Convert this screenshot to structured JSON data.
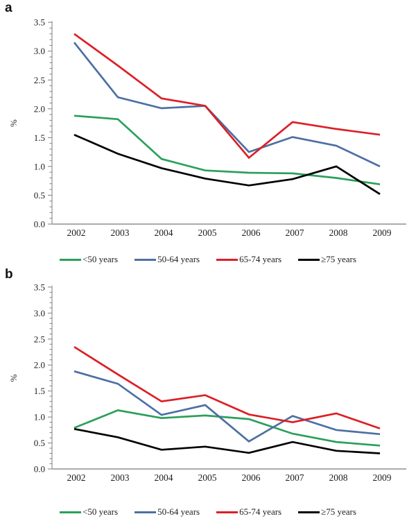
{
  "figure": {
    "background": "#ffffff"
  },
  "chart_data": [
    {
      "type": "line",
      "panel_label": "a",
      "title": "",
      "ylabel": "%",
      "xlabel": "",
      "x_categories": [
        "2002",
        "2003",
        "2004",
        "2005",
        "2006",
        "2007",
        "2008",
        "2009"
      ],
      "yticks": [
        "0.0",
        "0.5",
        "1.0",
        "1.5",
        "2.0",
        "2.5",
        "3.0",
        "3.5"
      ],
      "ylim": [
        0,
        3.5
      ],
      "grid": false,
      "legend_position": "bottom",
      "series": [
        {
          "name": "<50 years",
          "color": "#2ba05a",
          "values": [
            1.88,
            1.82,
            1.13,
            0.93,
            0.89,
            0.88,
            0.8,
            0.69
          ]
        },
        {
          "name": "50-64 years",
          "color": "#4d6fa3",
          "values": [
            3.15,
            2.2,
            2.01,
            2.05,
            1.25,
            1.51,
            1.36,
            1.0
          ]
        },
        {
          "name": "65-74 years",
          "color": "#dc1f26",
          "values": [
            3.3,
            2.75,
            2.18,
            2.05,
            1.15,
            1.77,
            1.65,
            1.55
          ]
        },
        {
          "name": "≥75 years",
          "color": "#000000",
          "values": [
            1.55,
            1.22,
            0.97,
            0.79,
            0.67,
            0.78,
            1.0,
            0.52
          ]
        }
      ]
    },
    {
      "type": "line",
      "panel_label": "b",
      "title": "",
      "ylabel": "%",
      "xlabel": "",
      "x_categories": [
        "2002",
        "2003",
        "2004",
        "2005",
        "2006",
        "2007",
        "2008",
        "2009"
      ],
      "yticks": [
        "0.0",
        "0.5",
        "1.0",
        "1.5",
        "2.0",
        "2.5",
        "3.0",
        "3.5"
      ],
      "ylim": [
        0,
        3.5
      ],
      "grid": false,
      "legend_position": "bottom",
      "series": [
        {
          "name": "<50 years",
          "color": "#2ba05a",
          "values": [
            0.79,
            1.13,
            0.98,
            1.03,
            0.96,
            0.68,
            0.52,
            0.45
          ]
        },
        {
          "name": "50-64 years",
          "color": "#4d6fa3",
          "values": [
            1.88,
            1.64,
            1.04,
            1.23,
            0.53,
            1.02,
            0.75,
            0.67
          ]
        },
        {
          "name": "65-74 years",
          "color": "#dc1f26",
          "values": [
            2.35,
            1.82,
            1.3,
            1.42,
            1.05,
            0.9,
            1.07,
            0.78
          ]
        },
        {
          "name": "≥75 years",
          "color": "#000000",
          "values": [
            0.77,
            0.61,
            0.37,
            0.43,
            0.31,
            0.52,
            0.35,
            0.3
          ]
        }
      ]
    }
  ]
}
